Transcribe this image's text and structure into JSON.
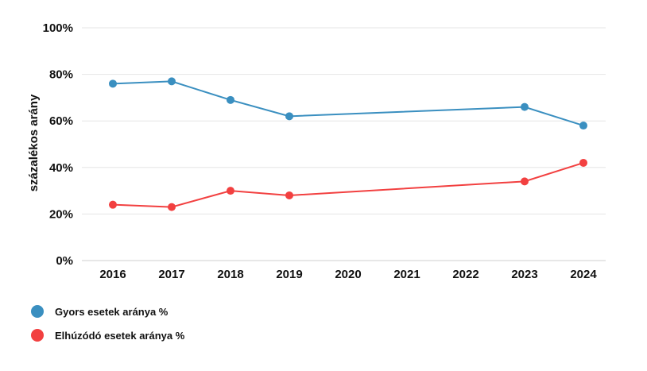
{
  "chart_data": {
    "type": "line",
    "title": "",
    "xlabel": "",
    "ylabel": "százalékos arány",
    "categories": [
      "2016",
      "2017",
      "2018",
      "2019",
      "2020",
      "2021",
      "2022",
      "2023",
      "2024"
    ],
    "ylim": [
      0,
      100
    ],
    "yticks": [
      "0%",
      "20%",
      "40%",
      "60%",
      "80%",
      "100%"
    ],
    "grid": true,
    "legend_position": "bottom-left",
    "series": [
      {
        "name": "Gyors esetek aránya %",
        "color": "#3a8fc0",
        "points": [
          {
            "x": "2016",
            "y": 76
          },
          {
            "x": "2017",
            "y": 77
          },
          {
            "x": "2018",
            "y": 69
          },
          {
            "x": "2019",
            "y": 62
          },
          {
            "x": "2023",
            "y": 66
          },
          {
            "x": "2024",
            "y": 58
          }
        ]
      },
      {
        "name": "Elhúzódó esetek aránya %",
        "color": "#f24040",
        "points": [
          {
            "x": "2016",
            "y": 24
          },
          {
            "x": "2017",
            "y": 23
          },
          {
            "x": "2018",
            "y": 30
          },
          {
            "x": "2019",
            "y": 28
          },
          {
            "x": "2023",
            "y": 34
          },
          {
            "x": "2024",
            "y": 42
          }
        ]
      }
    ]
  }
}
